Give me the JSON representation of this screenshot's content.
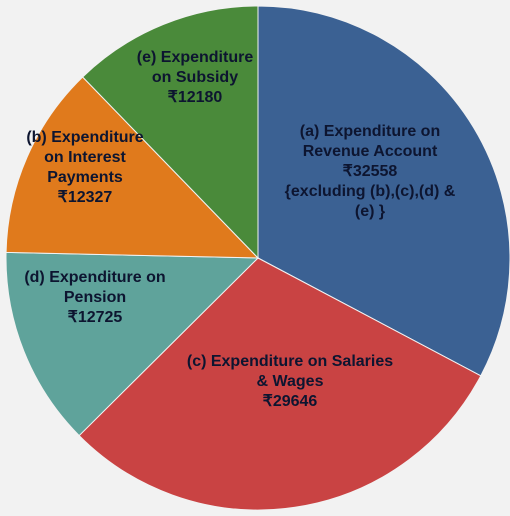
{
  "chart_data": {
    "type": "pie",
    "categories": [
      "(a) Expenditure on Revenue Account",
      "(c) Expenditure on Salaries & Wages",
      "(d) Expenditure on Pension",
      "(b) Expenditure on Interest Payments",
      "(e) Expenditure on Subsidy"
    ],
    "values": [
      32558,
      29646,
      12725,
      12327,
      12180
    ],
    "value_labels": [
      "₹32558",
      "₹29646",
      "₹12725",
      "₹12327",
      "₹12180"
    ],
    "colors": [
      "#3b6193",
      "#c94343",
      "#5fa39b",
      "#e07a1c",
      "#4a8a3a"
    ],
    "annotation": "{excluding (b),(c),(d) & (e) }"
  }
}
